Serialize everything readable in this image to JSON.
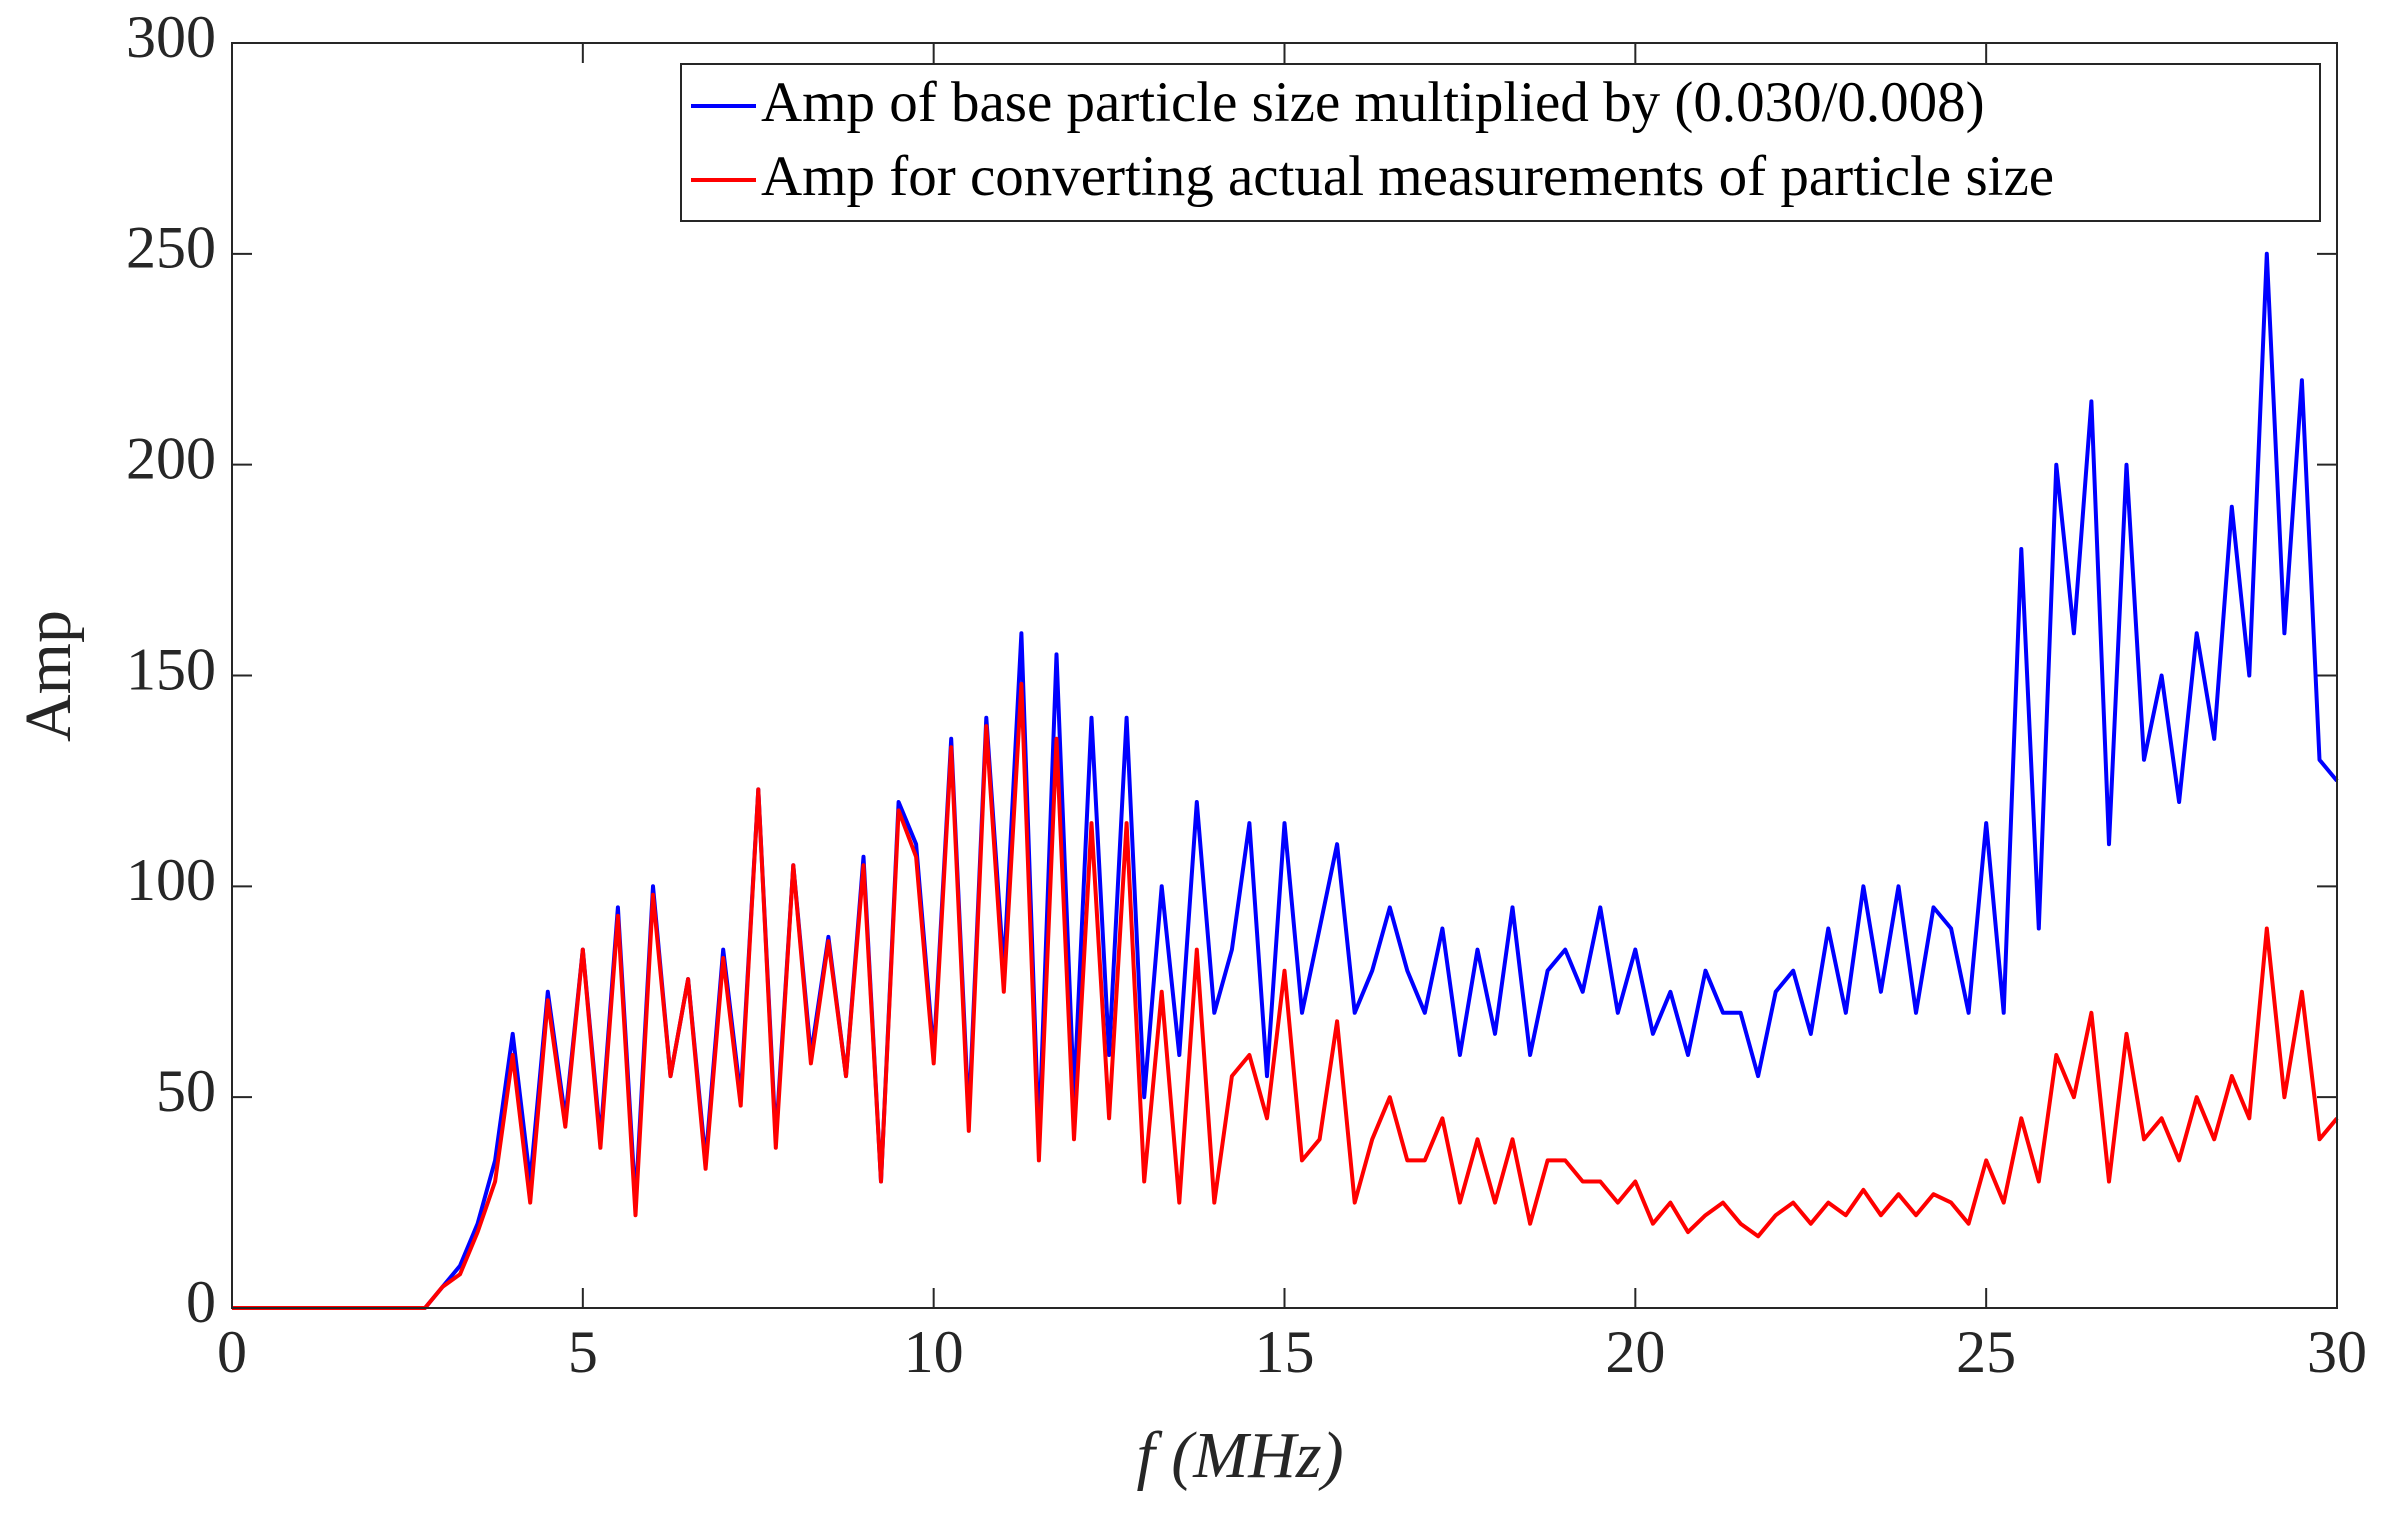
{
  "chart_data": {
    "type": "line",
    "xlabel": "f (MHz)",
    "ylabel": "Amp",
    "x": [
      0,
      0.25,
      0.5,
      0.75,
      1,
      1.25,
      1.5,
      1.75,
      2,
      2.25,
      2.5,
      2.75,
      3,
      3.25,
      3.5,
      3.75,
      4,
      4.25,
      4.5,
      4.75,
      5,
      5.25,
      5.5,
      5.75,
      6,
      6.25,
      6.5,
      6.75,
      7,
      7.25,
      7.5,
      7.75,
      8,
      8.25,
      8.5,
      8.75,
      9,
      9.25,
      9.5,
      9.75,
      10,
      10.25,
      10.5,
      10.75,
      11,
      11.25,
      11.5,
      11.75,
      12,
      12.25,
      12.5,
      12.75,
      13,
      13.25,
      13.5,
      13.75,
      14,
      14.25,
      14.5,
      14.75,
      15,
      15.25,
      15.5,
      15.75,
      16,
      16.25,
      16.5,
      16.75,
      17,
      17.25,
      17.5,
      17.75,
      18,
      18.25,
      18.5,
      18.75,
      19,
      19.25,
      19.5,
      19.75,
      20,
      20.25,
      20.5,
      20.75,
      21,
      21.25,
      21.5,
      21.75,
      22,
      22.25,
      22.5,
      22.75,
      23,
      23.25,
      23.5,
      23.75,
      24,
      24.25,
      24.5,
      24.75,
      25,
      25.25,
      25.5,
      25.75,
      26,
      26.25,
      26.5,
      26.75,
      27,
      27.25,
      27.5,
      27.75,
      28,
      28.25,
      28.5,
      28.75,
      29,
      29.25,
      29.5,
      29.75,
      30
    ],
    "series": [
      {
        "name": "Amp of base particle size multiplied by (0.030/0.008)",
        "color": "#0000ff",
        "values": [
          0,
          0,
          0,
          0,
          0,
          0,
          0,
          0,
          0,
          0,
          0,
          0,
          5,
          10,
          20,
          35,
          65,
          30,
          75,
          45,
          85,
          40,
          95,
          25,
          100,
          55,
          78,
          35,
          85,
          50,
          123,
          40,
          105,
          60,
          88,
          55,
          107,
          30,
          120,
          110,
          60,
          135,
          45,
          140,
          80,
          160,
          40,
          155,
          50,
          140,
          60,
          140,
          50,
          100,
          60,
          120,
          70,
          85,
          115,
          55,
          115,
          70,
          90,
          110,
          70,
          80,
          95,
          80,
          70,
          90,
          60,
          85,
          65,
          95,
          60,
          80,
          85,
          75,
          95,
          70,
          85,
          65,
          75,
          60,
          80,
          70,
          70,
          55,
          75,
          80,
          65,
          90,
          70,
          100,
          75,
          100,
          70,
          95,
          90,
          70,
          115,
          70,
          180,
          90,
          200,
          160,
          215,
          110,
          200,
          130,
          150,
          120,
          160,
          135,
          190,
          150,
          250,
          160,
          220,
          130,
          125
        ]
      },
      {
        "name": "Amp for converting actual measurements of particle size",
        "color": "#ff0000",
        "values": [
          0,
          0,
          0,
          0,
          0,
          0,
          0,
          0,
          0,
          0,
          0,
          0,
          5,
          8,
          18,
          30,
          60,
          25,
          73,
          43,
          85,
          38,
          93,
          22,
          98,
          55,
          78,
          33,
          83,
          48,
          123,
          38,
          105,
          58,
          87,
          55,
          105,
          30,
          118,
          107,
          58,
          133,
          42,
          138,
          75,
          148,
          35,
          135,
          40,
          115,
          45,
          115,
          30,
          75,
          25,
          85,
          25,
          55,
          60,
          45,
          80,
          35,
          40,
          68,
          25,
          40,
          50,
          35,
          35,
          45,
          25,
          40,
          25,
          40,
          20,
          35,
          35,
          30,
          30,
          25,
          30,
          20,
          25,
          18,
          22,
          25,
          20,
          17,
          22,
          25,
          20,
          25,
          22,
          28,
          22,
          27,
          22,
          27,
          25,
          20,
          35,
          25,
          45,
          30,
          60,
          50,
          70,
          30,
          65,
          40,
          45,
          35,
          50,
          40,
          55,
          45,
          90,
          50,
          75,
          40,
          45
        ]
      }
    ],
    "xlim": [
      0,
      30
    ],
    "xticks": [
      0,
      5,
      10,
      15,
      20,
      25,
      30
    ],
    "ylim": [
      0,
      300
    ],
    "yticks": [
      0,
      50,
      100,
      150,
      200,
      250,
      300
    ],
    "legend": "upper right"
  }
}
